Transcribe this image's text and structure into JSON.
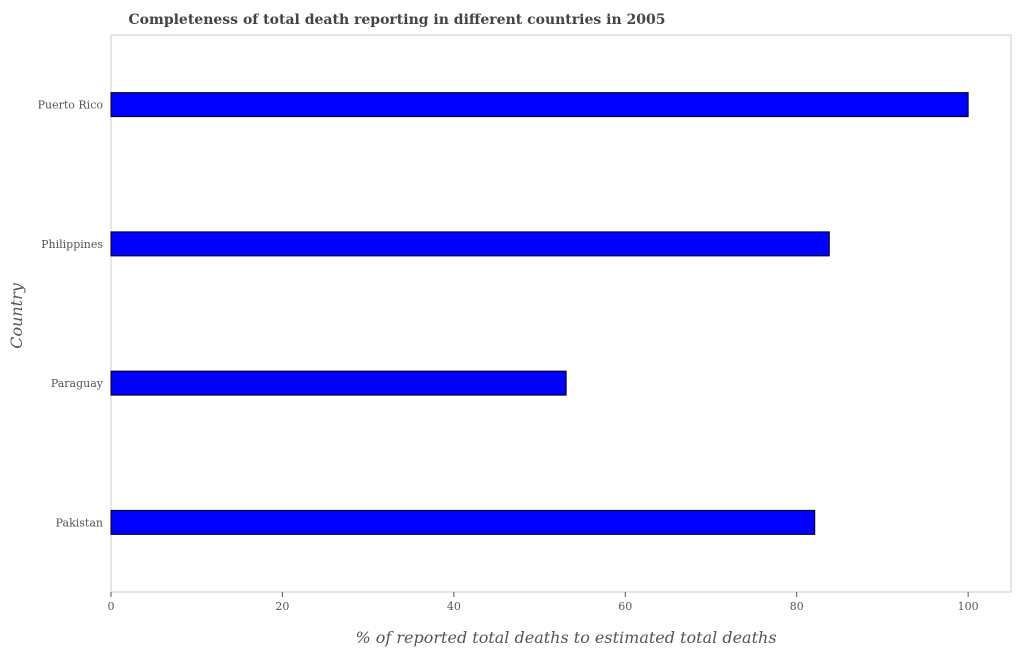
{
  "chart_data": {
    "type": "bar",
    "orientation": "horizontal",
    "title": "Completeness of total death reporting in different countries in 2005",
    "xlabel": "% of reported total deaths to estimated total deaths",
    "ylabel": "Country",
    "xlim": [
      0,
      105
    ],
    "x_ticks": [
      0,
      20,
      40,
      60,
      80,
      100
    ],
    "categories": [
      "Pakistan",
      "Paraguay",
      "Philippines",
      "Puerto Rico"
    ],
    "values": [
      82.1,
      53.1,
      83.8,
      100
    ],
    "bar_color": "#0000ff",
    "grid": false
  }
}
